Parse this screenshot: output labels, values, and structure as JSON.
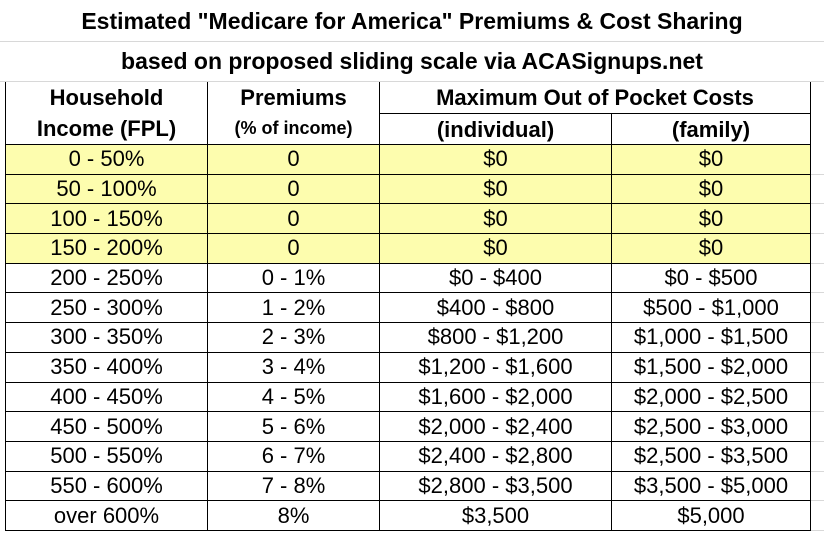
{
  "title": [
    "Estimated \"Medicare for America\" Premiums & Cost Sharing",
    "based on proposed sliding scale via ACASignups.net"
  ],
  "header": {
    "income": [
      "Household",
      "Income (FPL)"
    ],
    "premiums": [
      "Premiums",
      "(% of income)"
    ],
    "max_oop": "Maximum Out of Pocket Costs",
    "individual": "(individual)",
    "family": "(family)"
  },
  "rows": [
    [
      "0 - 50%",
      "0",
      "$0",
      "$0"
    ],
    [
      "50 - 100%",
      "0",
      "$0",
      "$0"
    ],
    [
      "100 - 150%",
      "0",
      "$0",
      "$0"
    ],
    [
      "150 - 200%",
      "0",
      "$0",
      "$0"
    ],
    [
      "200 - 250%",
      "0 - 1%",
      "$0 - $400",
      "$0 - $500"
    ],
    [
      "250 - 300%",
      "1 - 2%",
      "$400 - $800",
      "$500 - $1,000"
    ],
    [
      "300 - 350%",
      "2 - 3%",
      "$800 - $1,200",
      "$1,000 - $1,500"
    ],
    [
      "350 - 400%",
      "3 - 4%",
      "$1,200 - $1,600",
      "$1,500 - $2,000"
    ],
    [
      "400 - 450%",
      "4 - 5%",
      "$1,600 - $2,000",
      "$2,000 - $2,500"
    ],
    [
      "450 - 500%",
      "5 - 6%",
      "$2,000 - $2,400",
      "$2,500 - $3,000"
    ],
    [
      "500 - 550%",
      "6 - 7%",
      "$2,400 - $2,800",
      "$2,500 - $3,500"
    ],
    [
      "550 - 600%",
      "7 - 8%",
      "$2,800 - $3,500",
      "$3,500 - $5,000"
    ],
    [
      "over 600%",
      "8%",
      "$3,500",
      "$5,000"
    ]
  ]
}
